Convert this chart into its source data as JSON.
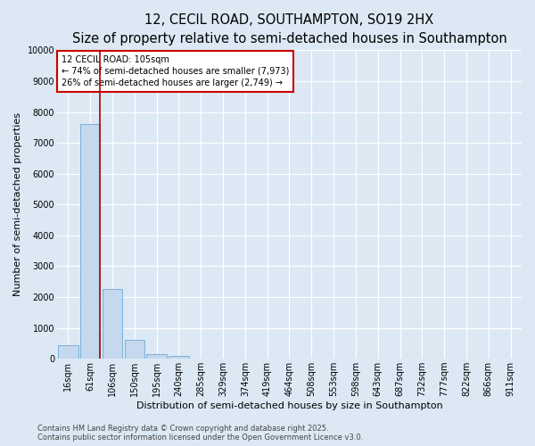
{
  "title_line1": "12, CECIL ROAD, SOUTHAMPTON, SO19 2HX",
  "title_line2": "Size of property relative to semi-detached houses in Southampton",
  "xlabel": "Distribution of semi-detached houses by size in Southampton",
  "ylabel": "Number of semi-detached properties",
  "categories": [
    "16sqm",
    "61sqm",
    "106sqm",
    "150sqm",
    "195sqm",
    "240sqm",
    "285sqm",
    "329sqm",
    "374sqm",
    "419sqm",
    "464sqm",
    "508sqm",
    "553sqm",
    "598sqm",
    "643sqm",
    "687sqm",
    "732sqm",
    "777sqm",
    "822sqm",
    "866sqm",
    "911sqm"
  ],
  "values": [
    430,
    7600,
    2250,
    620,
    155,
    80,
    0,
    0,
    0,
    0,
    0,
    0,
    0,
    0,
    0,
    0,
    0,
    0,
    0,
    0,
    0
  ],
  "bar_color": "#c5d8ee",
  "bar_edge_color": "#6aaad4",
  "ref_line_color": "#aa0000",
  "annotation_text": "12 CECIL ROAD: 105sqm\n← 74% of semi-detached houses are smaller (7,973)\n26% of semi-detached houses are larger (2,749) →",
  "annotation_box_color": "#ffffff",
  "annotation_box_edge_color": "#cc0000",
  "ylim": [
    0,
    10000
  ],
  "yticks": [
    0,
    1000,
    2000,
    3000,
    4000,
    5000,
    6000,
    7000,
    8000,
    9000,
    10000
  ],
  "background_color": "#dce9f5",
  "plot_area_color": "#dce9f5",
  "footer_line1": "Contains HM Land Registry data © Crown copyright and database right 2025.",
  "footer_line2": "Contains public sector information licensed under the Open Government Licence v3.0.",
  "title_fontsize": 10.5,
  "subtitle_fontsize": 8.5,
  "axis_label_fontsize": 8,
  "tick_fontsize": 7,
  "annotation_fontsize": 7,
  "footer_fontsize": 6
}
